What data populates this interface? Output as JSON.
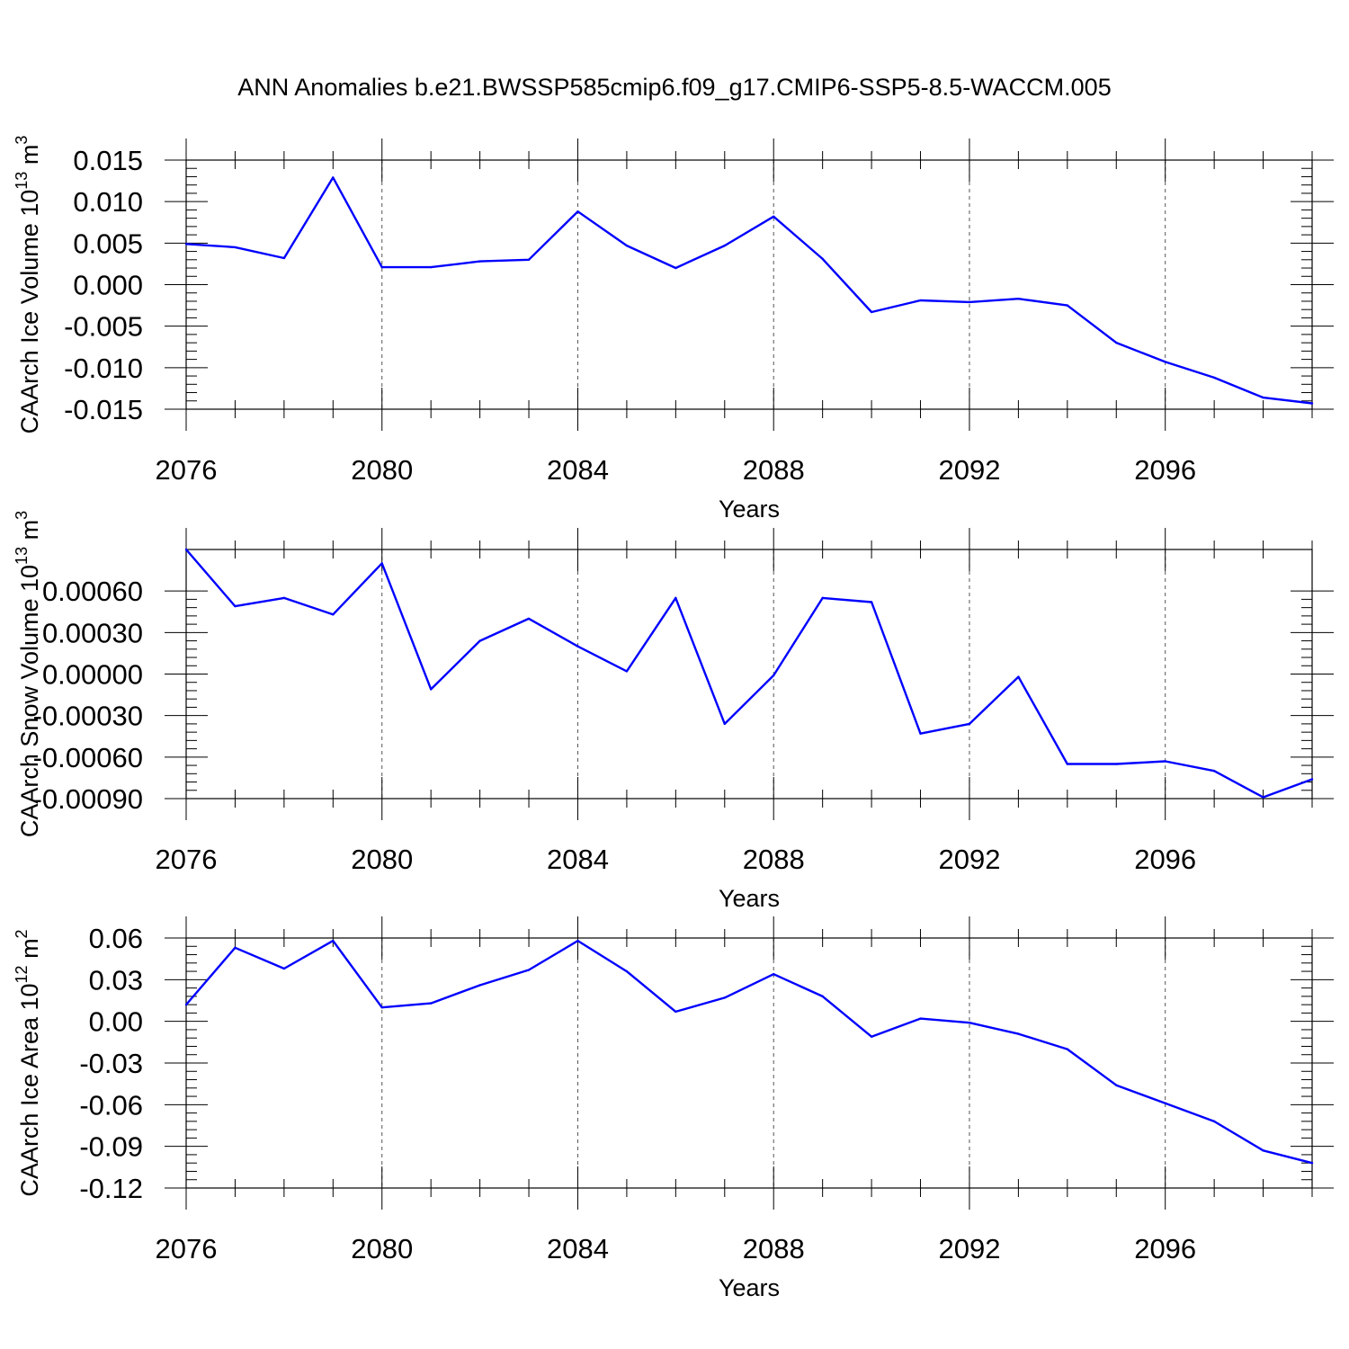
{
  "figure": {
    "title": "ANN Anomalies b.e21.BWSSP585cmip6.f09_g17.CMIP6-SSP5-8.5-WACCM.005"
  },
  "colors": {
    "line": "#0000ff",
    "axes": "#000000",
    "grid": "#555555"
  },
  "chart_data": [
    {
      "type": "line",
      "ylabel": "CAArch Ice Volume 10",
      "ylabel_exp": "13",
      "ylabel_unit": " m",
      "ylabel_unit_exp": "3",
      "xlabel": "Years",
      "xlim": [
        2076,
        2099
      ],
      "ylim": [
        -0.015,
        0.015
      ],
      "grid_x": true,
      "x_ticks": [
        "2076",
        "2080",
        "2084",
        "2088",
        "2092",
        "2096"
      ],
      "y_ticks": [
        "0.015",
        "0.010",
        "0.005",
        "0.000",
        "-0.005",
        "-0.010",
        "-0.015"
      ],
      "x": [
        2076,
        2077,
        2078,
        2079,
        2080,
        2081,
        2082,
        2083,
        2084,
        2085,
        2086,
        2087,
        2088,
        2089,
        2090,
        2091,
        2092,
        2093,
        2094,
        2095,
        2096,
        2097,
        2098,
        2099
      ],
      "series": [
        {
          "values": [
            0.0049,
            0.0045,
            0.0032,
            0.0129,
            0.0021,
            0.0021,
            0.0028,
            0.003,
            0.0088,
            0.0047,
            0.002,
            0.0047,
            0.0082,
            0.0031,
            -0.0033,
            -0.0019,
            -0.0021,
            -0.0017,
            -0.0025,
            -0.007,
            -0.0093,
            -0.0112,
            -0.0136,
            -0.0143
          ]
        }
      ]
    },
    {
      "type": "line",
      "ylabel": "CAArch Snow Volume 10",
      "ylabel_exp": "13",
      "ylabel_unit": " m",
      "ylabel_unit_exp": "3",
      "xlabel": "Years",
      "xlim": [
        2076,
        2099
      ],
      "ylim": [
        -0.0009,
        0.0009
      ],
      "grid_x": true,
      "x_ticks": [
        "2076",
        "2080",
        "2084",
        "2088",
        "2092",
        "2096"
      ],
      "y_ticks": [
        "0.00060",
        "0.00030",
        "0.00000",
        "-0.00030",
        "-0.00060",
        "-0.00090"
      ],
      "x": [
        2076,
        2077,
        2078,
        2079,
        2080,
        2081,
        2082,
        2083,
        2084,
        2085,
        2086,
        2087,
        2088,
        2089,
        2090,
        2091,
        2092,
        2093,
        2094,
        2095,
        2096,
        2097,
        2098,
        2099
      ],
      "series": [
        {
          "values": [
            0.0009,
            0.00049,
            0.00055,
            0.00043,
            0.0008,
            -0.00011,
            0.00024,
            0.0004,
            0.0002,
            2e-05,
            0.00055,
            -0.00036,
            -1e-05,
            0.00055,
            0.00052,
            -0.00043,
            -0.00036,
            -2e-05,
            -0.00065,
            -0.00065,
            -0.00063,
            -0.0007,
            -0.00089,
            -0.00076
          ]
        }
      ]
    },
    {
      "type": "line",
      "ylabel": "CAArch Ice Area 10",
      "ylabel_exp": "12",
      "ylabel_unit": " m",
      "ylabel_unit_exp": "2",
      "xlabel": "Years",
      "xlim": [
        2076,
        2099
      ],
      "ylim": [
        -0.12,
        0.06
      ],
      "grid_x": true,
      "x_ticks": [
        "2076",
        "2080",
        "2084",
        "2088",
        "2092",
        "2096"
      ],
      "y_ticks": [
        "0.06",
        "0.03",
        "0.00",
        "-0.03",
        "-0.06",
        "-0.09",
        "-0.12"
      ],
      "x": [
        2076,
        2077,
        2078,
        2079,
        2080,
        2081,
        2082,
        2083,
        2084,
        2085,
        2086,
        2087,
        2088,
        2089,
        2090,
        2091,
        2092,
        2093,
        2094,
        2095,
        2096,
        2097,
        2098,
        2099
      ],
      "series": [
        {
          "values": [
            0.012,
            0.053,
            0.038,
            0.058,
            0.01,
            0.013,
            0.026,
            0.037,
            0.058,
            0.036,
            0.007,
            0.017,
            0.034,
            0.018,
            -0.011,
            0.002,
            -0.001,
            -0.009,
            -0.02,
            -0.046,
            -0.059,
            -0.072,
            -0.093,
            -0.102
          ]
        }
      ]
    }
  ]
}
